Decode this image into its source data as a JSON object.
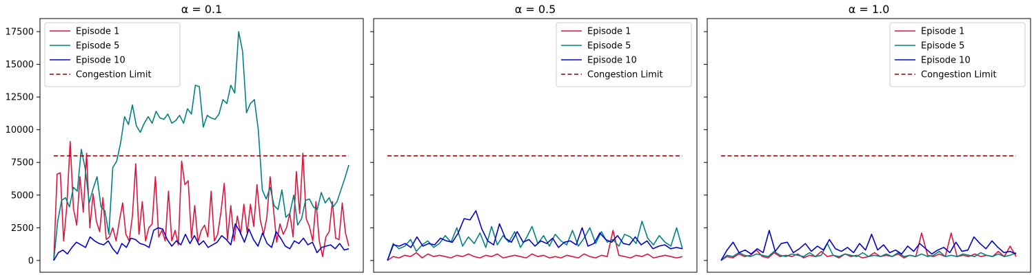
{
  "chart_data": [
    {
      "type": "line",
      "title": "α = 0.1",
      "xlabel": "",
      "ylabel": "",
      "ylim": [
        -900,
        18500
      ],
      "yticks": [
        0,
        2500,
        5000,
        7500,
        10000,
        12500,
        15000,
        17500
      ],
      "x_ticks_visible": false,
      "legend_position": "upper left",
      "legend": [
        "Episode 1",
        "Episode 5",
        "Episode 10",
        "Congestion Limit"
      ],
      "reference_line": {
        "name": "Congestion Limit",
        "y": 8000,
        "color": "#8b0000",
        "style": "dashed"
      },
      "series": [
        {
          "name": "Episode 1",
          "color": "#dc143c",
          "values": [
            0,
            6600,
            6700,
            1500,
            4200,
            9100,
            4000,
            2700,
            6400,
            3700,
            8200,
            2500,
            5100,
            3000,
            2200,
            4800,
            1600,
            1800,
            2500,
            1500,
            3000,
            4400,
            2000,
            1500,
            3400,
            7400,
            2000,
            4500,
            1500,
            2500,
            2800,
            6400,
            1800,
            2300,
            1500,
            5300,
            1500,
            2300,
            1200,
            7600,
            5800,
            6100,
            1700,
            4200,
            1400,
            2300,
            2700,
            1800,
            5300,
            1500,
            2000,
            3700,
            5900,
            1600,
            4200,
            1500,
            3400,
            2000,
            4300,
            2100,
            4300,
            2600,
            5800,
            3100,
            2000,
            3300,
            6400,
            4000,
            1400,
            2800,
            2000,
            2500,
            3600,
            1800,
            6800,
            3600,
            8200,
            3200,
            2600,
            1500,
            4500,
            1500,
            300,
            1800,
            2200,
            4500,
            1700,
            1600,
            4400,
            2100,
            1100
          ]
        },
        {
          "name": "Episode 5",
          "color": "#008080",
          "values": [
            0,
            3000,
            4600,
            4800,
            4100,
            5600,
            5300,
            8500,
            7000,
            4400,
            5500,
            6400,
            4100,
            3800,
            2000,
            7100,
            7600,
            9000,
            11000,
            10400,
            11900,
            10300,
            9800,
            10500,
            11000,
            10500,
            11400,
            10900,
            10800,
            11200,
            10500,
            10700,
            11100,
            10500,
            11600,
            11200,
            13400,
            13300,
            10200,
            11100,
            10900,
            10800,
            11200,
            12300,
            12000,
            13400,
            12800,
            17500,
            16000,
            11300,
            12000,
            12300,
            10000,
            5400,
            4700,
            5600,
            4200,
            3900,
            5400,
            3300,
            3600,
            5000,
            2700,
            3200,
            4600,
            4700,
            4100,
            3900,
            5200,
            4400,
            4800,
            4100,
            4500,
            5400,
            6300,
            7300
          ]
        },
        {
          "name": "Episode 10",
          "color": "#0000cd",
          "values": [
            0,
            600,
            800,
            500,
            1000,
            1400,
            1200,
            1000,
            1800,
            1500,
            1300,
            1200,
            1500,
            900,
            500,
            1300,
            1000,
            1700,
            1600,
            1300,
            1200,
            1000,
            2300,
            2500,
            2400,
            1600,
            1100,
            1500,
            1200,
            2000,
            1300,
            1900,
            1200,
            1500,
            1000,
            1200,
            1400,
            1900,
            1600,
            1200,
            2800,
            2200,
            1400,
            2400,
            1600,
            1100,
            2100,
            1300,
            1000,
            2200,
            1700,
            1100,
            900,
            1500,
            1300,
            1700,
            1200,
            1400,
            600,
            1000,
            1100,
            1200,
            900,
            1300,
            800,
            900
          ]
        },
        {
          "name": "Congestion Limit",
          "color": "#8b0000",
          "values": [
            8000,
            8000
          ]
        }
      ]
    },
    {
      "type": "line",
      "title": "α = 0.5",
      "xlabel": "",
      "ylabel": "",
      "ylim": [
        -900,
        18500
      ],
      "x_ticks_visible": false,
      "y_tick_labels_visible": false,
      "legend_position": "upper right",
      "legend": [
        "Episode 1",
        "Episode 5",
        "Episode 10",
        "Congestion Limit"
      ],
      "reference_line": {
        "name": "Congestion Limit",
        "y": 8000,
        "color": "#8b0000",
        "style": "dashed"
      },
      "series": [
        {
          "name": "Episode 1",
          "color": "#dc143c",
          "values": [
            0,
            300,
            200,
            400,
            300,
            600,
            200,
            500,
            300,
            400,
            300,
            200,
            400,
            300,
            500,
            300,
            200,
            400,
            300,
            500,
            200,
            300,
            400,
            300,
            200,
            500,
            300,
            400,
            200,
            300,
            200,
            400,
            300,
            200,
            500,
            300,
            200,
            400,
            300,
            2300,
            400,
            300,
            200,
            400,
            300,
            500,
            200,
            300,
            400,
            300,
            200,
            300
          ]
        },
        {
          "name": "Episode 5",
          "color": "#008080",
          "values": [
            0,
            1300,
            900,
            1100,
            1600,
            700,
            1200,
            1500,
            1000,
            1300,
            1900,
            1400,
            2500,
            1100,
            1800,
            1300,
            2100,
            1000,
            2600,
            1200,
            1900,
            1400,
            2200,
            1000,
            1700,
            2600,
            1300,
            1900,
            1100,
            2000,
            1500,
            1200,
            2300,
            1100,
            1700,
            2500,
            1300,
            2200,
            1400,
            1600,
            1100,
            2000,
            1800,
            1300,
            3000,
            1700,
            1200,
            1900,
            1400,
            1100,
            2500,
            900
          ]
        },
        {
          "name": "Episode 10",
          "color": "#0000cd",
          "values": [
            0,
            1200,
            1100,
            1300,
            1000,
            1800,
            1100,
            1300,
            1200,
            1700,
            1500,
            1400,
            2100,
            3200,
            3100,
            3800,
            2400,
            1500,
            1200,
            2800,
            1700,
            1400,
            2200,
            1400,
            1600,
            1100,
            1500,
            1300,
            1700,
            1000,
            1400,
            1500,
            1200,
            2500,
            1100,
            1300,
            2100,
            1600,
            1400,
            1900,
            1300,
            1200,
            1800,
            1200,
            1500,
            900,
            1100,
            1200,
            900,
            1000,
            900
          ]
        },
        {
          "name": "Congestion Limit",
          "color": "#8b0000",
          "values": [
            8000,
            8000
          ]
        }
      ]
    },
    {
      "type": "line",
      "title": "α = 1.0",
      "xlabel": "",
      "ylabel": "",
      "ylim": [
        -900,
        18500
      ],
      "x_ticks_visible": false,
      "y_tick_labels_visible": false,
      "legend_position": "upper right",
      "legend": [
        "Episode 1",
        "Episode 5",
        "Episode 10",
        "Congestion Limit"
      ],
      "reference_line": {
        "name": "Congestion Limit",
        "y": 8000,
        "color": "#8b0000",
        "style": "dashed"
      },
      "series": [
        {
          "name": "Episode 1",
          "color": "#dc143c",
          "values": [
            0,
            300,
            200,
            500,
            300,
            400,
            800,
            300,
            200,
            600,
            300,
            400,
            300,
            500,
            200,
            400,
            300,
            700,
            300,
            400,
            200,
            500,
            300,
            400,
            200,
            300,
            600,
            300,
            400,
            300,
            500,
            200,
            400,
            300,
            2100,
            400,
            300,
            500,
            300,
            2100,
            300,
            400,
            300,
            500,
            300,
            400,
            300,
            700,
            300,
            1100,
            300
          ]
        },
        {
          "name": "Episode 5",
          "color": "#008080",
          "values": [
            0,
            400,
            300,
            600,
            400,
            300,
            500,
            400,
            300,
            700,
            400,
            300,
            500,
            400,
            300,
            600,
            300,
            400,
            1300,
            400,
            300,
            500,
            400,
            300,
            600,
            300,
            400,
            300,
            500,
            300,
            600,
            300,
            400,
            300,
            500,
            300,
            400,
            700,
            300,
            400,
            300,
            500,
            400,
            300,
            600,
            400,
            300,
            500,
            300,
            400,
            600
          ]
        },
        {
          "name": "Episode 10",
          "color": "#0000cd",
          "values": [
            0,
            800,
            1400,
            600,
            800,
            500,
            900,
            600,
            2300,
            700,
            1300,
            1400,
            600,
            900,
            1300,
            700,
            1100,
            800,
            1600,
            900,
            700,
            1000,
            600,
            1300,
            800,
            2000,
            800,
            1200,
            600,
            800,
            500,
            1100,
            700,
            1300,
            900,
            500,
            800,
            1000,
            600,
            1400,
            700,
            800,
            1800,
            1300,
            900,
            1500,
            1000,
            600,
            700,
            500
          ]
        },
        {
          "name": "Congestion Limit",
          "color": "#8b0000",
          "values": [
            8000,
            8000
          ]
        }
      ]
    }
  ]
}
